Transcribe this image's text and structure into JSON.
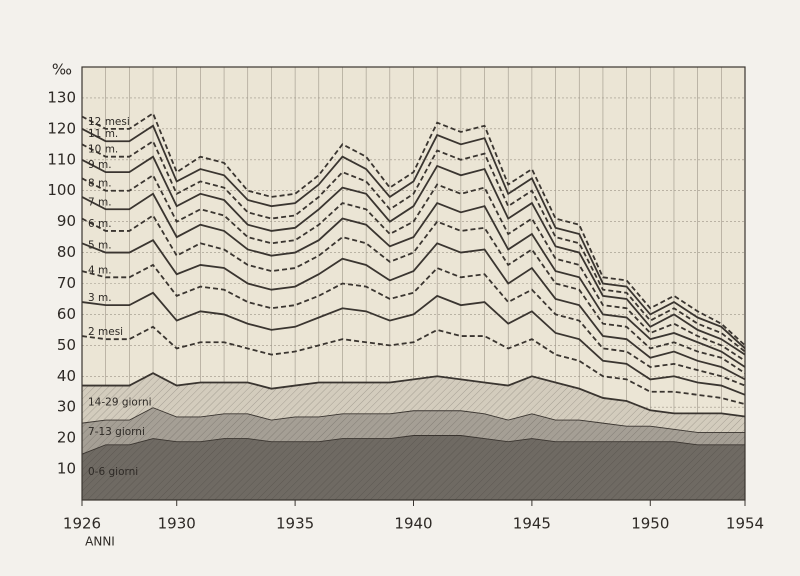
{
  "chart_data": {
    "type": "stacked-line",
    "y_unit": "‰",
    "x_label": "ANNI",
    "x": [
      1926,
      1927,
      1928,
      1929,
      1930,
      1931,
      1932,
      1933,
      1934,
      1935,
      1936,
      1937,
      1938,
      1939,
      1940,
      1941,
      1942,
      1943,
      1944,
      1945,
      1946,
      1947,
      1948,
      1949,
      1950,
      1951,
      1952,
      1953,
      1954
    ],
    "xlim": [
      1926,
      1954
    ],
    "xticks": [
      1926,
      1930,
      1935,
      1940,
      1945,
      1950,
      1954
    ],
    "ylim": [
      0,
      140
    ],
    "yticks": [
      10,
      20,
      30,
      40,
      50,
      60,
      70,
      80,
      90,
      100,
      110,
      120,
      130
    ],
    "grid": true,
    "background": "#ebe5d5",
    "series": [
      {
        "name": "0-6 giorni",
        "color": "#3a3530",
        "line_style": "solid",
        "fill": "#6f6a63",
        "values": [
          15,
          18,
          18,
          20,
          19,
          19,
          20,
          20,
          19,
          19,
          19,
          20,
          20,
          20,
          21,
          21,
          21,
          20,
          19,
          20,
          19,
          19,
          19,
          19,
          19,
          19,
          18,
          18,
          18
        ]
      },
      {
        "name": "7-13 giorni",
        "color": "#3a3530",
        "line_style": "solid",
        "fill": "#a59f95",
        "values": [
          10,
          8,
          8,
          10,
          8,
          8,
          8,
          8,
          7,
          8,
          8,
          8,
          8,
          8,
          8,
          8,
          8,
          8,
          7,
          8,
          7,
          7,
          6,
          5,
          5,
          4,
          4,
          4,
          4
        ]
      },
      {
        "name": "14-29 giorni",
        "color": "#3a3530",
        "line_style": "solid",
        "fill": "#d3ccbd",
        "values": [
          12,
          11,
          11,
          11,
          10,
          11,
          10,
          10,
          10,
          10,
          11,
          10,
          10,
          10,
          10,
          11,
          10,
          10,
          11,
          12,
          12,
          10,
          8,
          8,
          5,
          5,
          6,
          6,
          5
        ]
      },
      {
        "name": "2 mesi",
        "color": "#3a3530",
        "line_style": "dashed",
        "values": [
          16,
          15,
          15,
          15,
          12,
          13,
          13,
          11,
          11,
          11,
          12,
          14,
          13,
          12,
          12,
          15,
          14,
          15,
          12,
          12,
          9,
          9,
          7,
          7,
          6,
          7,
          6,
          5,
          4
        ]
      },
      {
        "name": "3 m.",
        "color": "#3a3530",
        "line_style": "solid",
        "values": [
          11,
          11,
          11,
          11,
          9,
          10,
          9,
          8,
          8,
          8,
          9,
          10,
          10,
          8,
          9,
          11,
          10,
          11,
          8,
          9,
          7,
          7,
          5,
          5,
          4,
          5,
          4,
          4,
          3
        ]
      },
      {
        "name": "4 m.",
        "color": "#3a3530",
        "line_style": "dashed",
        "values": [
          10,
          9,
          9,
          9,
          8,
          8,
          8,
          7,
          7,
          7,
          7,
          8,
          8,
          7,
          7,
          9,
          9,
          9,
          7,
          7,
          6,
          6,
          4,
          4,
          4,
          4,
          4,
          3,
          3
        ]
      },
      {
        "name": "5 m.",
        "color": "#3a3530",
        "line_style": "solid",
        "values": [
          9,
          8,
          8,
          8,
          7,
          7,
          7,
          6,
          6,
          6,
          7,
          8,
          7,
          6,
          7,
          8,
          8,
          8,
          6,
          7,
          5,
          5,
          4,
          4,
          3,
          4,
          3,
          3,
          2
        ]
      },
      {
        "name": "6 m.",
        "color": "#3a3530",
        "line_style": "dashed",
        "values": [
          8,
          7,
          7,
          8,
          6,
          7,
          6,
          6,
          6,
          6,
          6,
          7,
          7,
          6,
          6,
          7,
          7,
          7,
          6,
          6,
          5,
          5,
          4,
          4,
          3,
          3,
          3,
          3,
          2
        ]
      },
      {
        "name": "7 m.",
        "color": "#3a3530",
        "line_style": "solid",
        "values": [
          7,
          7,
          7,
          7,
          6,
          6,
          6,
          5,
          5,
          5,
          5,
          6,
          6,
          5,
          5,
          6,
          6,
          7,
          5,
          5,
          4,
          4,
          3,
          3,
          3,
          3,
          3,
          2,
          2
        ]
      },
      {
        "name": "8 m.",
        "color": "#3a3530",
        "line_style": "dashed",
        "values": [
          6,
          6,
          6,
          6,
          5,
          5,
          5,
          4,
          4,
          4,
          5,
          5,
          5,
          4,
          5,
          6,
          6,
          6,
          5,
          5,
          4,
          4,
          3,
          3,
          2,
          3,
          2,
          2,
          2
        ]
      },
      {
        "name": "9 m.",
        "color": "#3a3530",
        "line_style": "solid",
        "values": [
          6,
          6,
          6,
          6,
          5,
          5,
          5,
          4,
          4,
          4,
          5,
          5,
          5,
          4,
          5,
          6,
          6,
          6,
          5,
          5,
          4,
          4,
          3,
          3,
          2,
          3,
          2,
          2,
          2
        ]
      },
      {
        "name": "10 m.",
        "color": "#3a3530",
        "line_style": "dashed",
        "values": [
          5,
          5,
          5,
          5,
          4,
          4,
          4,
          4,
          4,
          4,
          4,
          5,
          4,
          4,
          4,
          5,
          5,
          5,
          4,
          4,
          3,
          3,
          2,
          2,
          2,
          2,
          2,
          2,
          1
        ]
      },
      {
        "name": "11 m.",
        "color": "#3a3530",
        "line_style": "solid",
        "values": [
          5,
          5,
          5,
          5,
          4,
          4,
          4,
          4,
          4,
          4,
          4,
          5,
          4,
          4,
          4,
          5,
          5,
          5,
          4,
          4,
          3,
          3,
          2,
          2,
          2,
          2,
          2,
          2,
          1
        ]
      },
      {
        "name": "12 mesi",
        "color": "#3a3530",
        "line_style": "dashed",
        "values": [
          4,
          4,
          4,
          4,
          3,
          4,
          4,
          3,
          3,
          3,
          3,
          4,
          4,
          3,
          3,
          4,
          4,
          4,
          3,
          3,
          3,
          3,
          2,
          2,
          2,
          2,
          2,
          1,
          1
        ]
      }
    ]
  }
}
